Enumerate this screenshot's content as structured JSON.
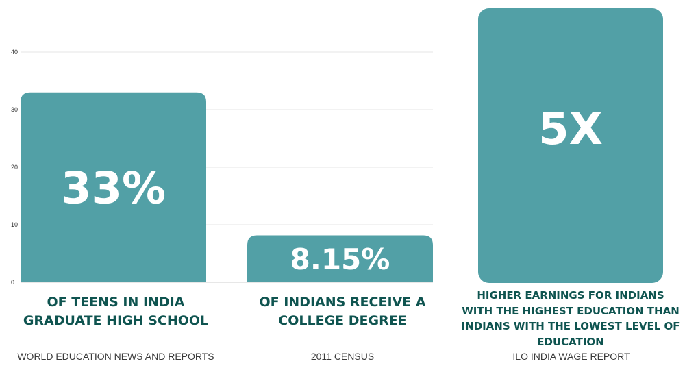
{
  "chart_data": {
    "type": "bar",
    "categories": [
      "OF TEENS IN INDIA GRADUATE HIGH SCHOOL",
      "OF INDIANS RECEIVE A COLLEGE DEGREE"
    ],
    "values": [
      33,
      8.15
    ],
    "value_labels": [
      "33%",
      "8.15%"
    ],
    "ylim": [
      0,
      40
    ],
    "yticks": [
      0,
      10,
      20,
      30,
      40
    ],
    "grid": true,
    "bar_color": "#52a0a6"
  },
  "captions": {
    "teens": "OF TEENS IN INDIA GRADUATE HIGH SCHOOL",
    "college": "OF INDIANS RECEIVE A COLLEGE DEGREE",
    "earnings": "HIGHER  EARNINGS FOR INDIANS WITH THE HIGHEST EDUCATION THAN INDIANS WITH THE LOWEST LEVEL OF EDUCATION"
  },
  "sources": {
    "teens": "WORLD EDUCATION NEWS AND REPORTS",
    "college": "2011 CENSUS",
    "earnings": "ILO INDIA WAGE REPORT"
  },
  "earnings_panel": {
    "value": "5X"
  },
  "colors": {
    "bar": "#52a0a6",
    "caption_text": "#0f5450",
    "source_text": "#3a3a3a",
    "grid": "#e6e6e6"
  }
}
